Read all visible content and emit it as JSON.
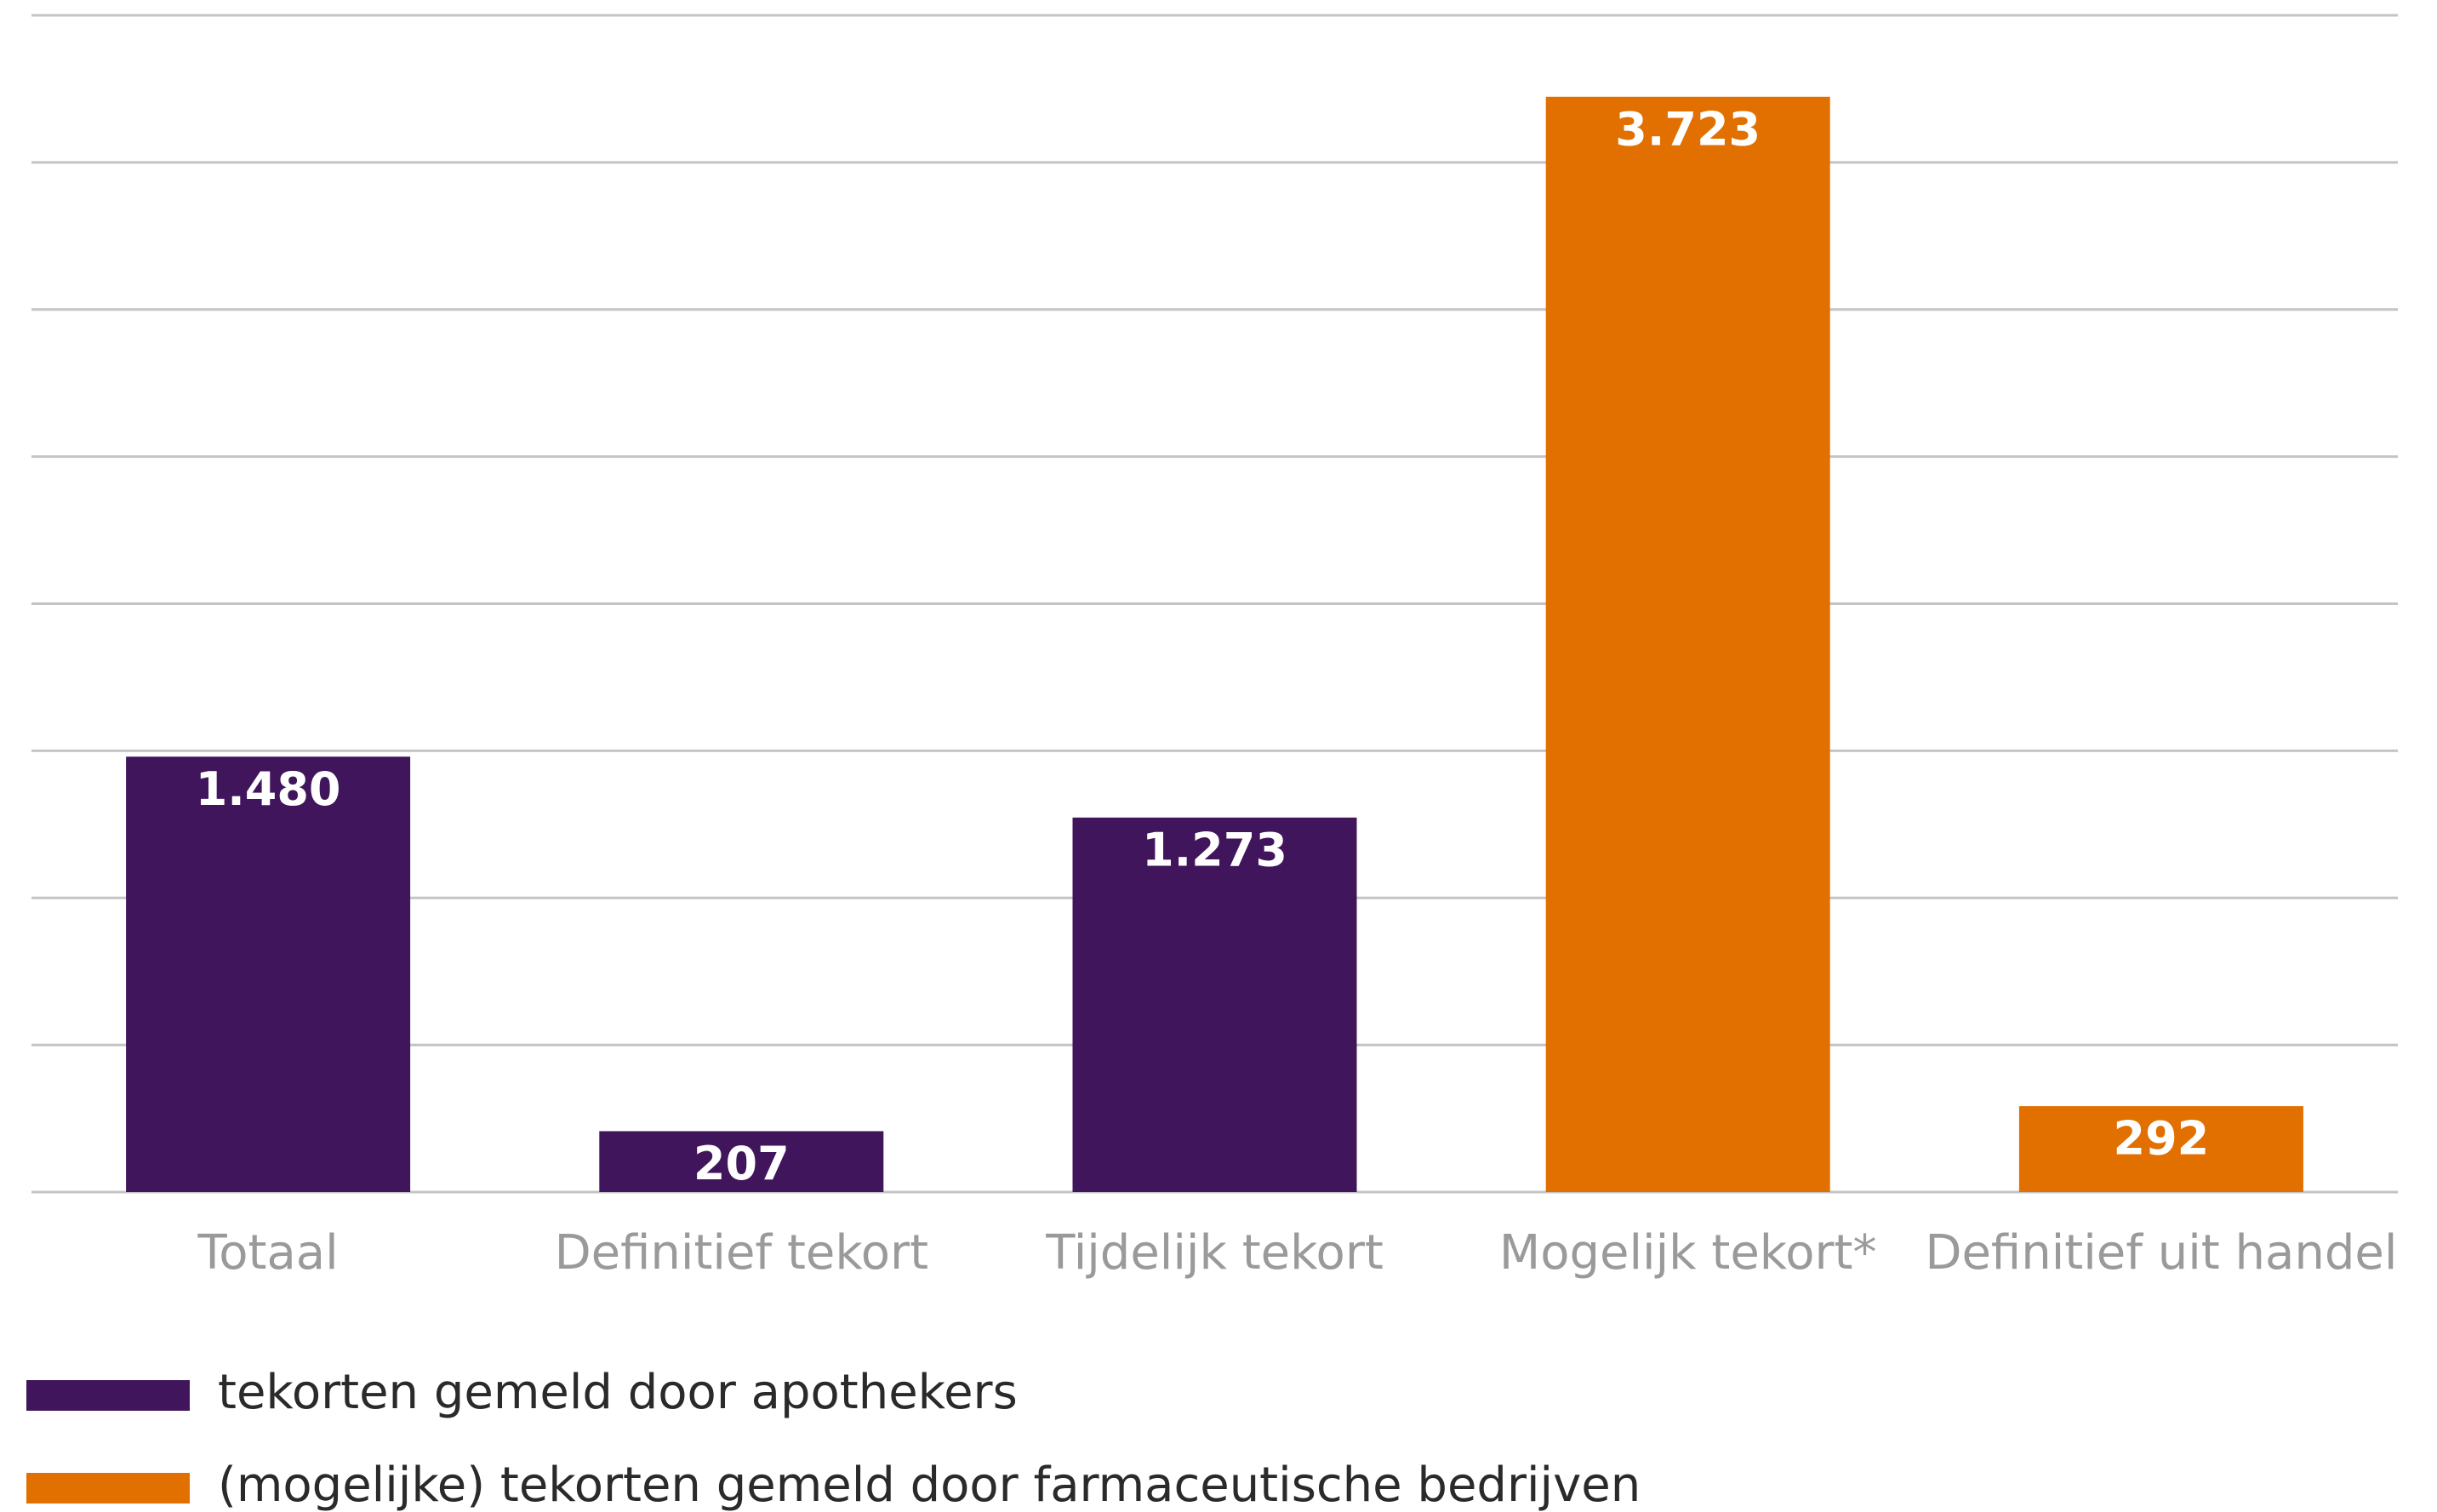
{
  "chart_data": {
    "type": "bar",
    "categories": [
      "Totaal",
      "Definitief tekort",
      "Tijdelijk tekort",
      "Mogelijk tekort*",
      "Definitief uit handel"
    ],
    "series": [
      {
        "name": "tekorten gemeld door apothekers",
        "color": "#40155c",
        "values": [
          1480,
          207,
          1273,
          null,
          null
        ],
        "value_labels": [
          "1.480",
          "207",
          "1.273",
          null,
          null
        ]
      },
      {
        "name": "(mogelijke) tekorten gemeld door farmaceutische bedrijven",
        "color": "#e17000",
        "values": [
          null,
          null,
          null,
          3723,
          292
        ],
        "value_labels": [
          null,
          null,
          null,
          "3.723",
          "292"
        ]
      }
    ],
    "ylim": [
      0,
      4000
    ],
    "yticks": [
      0,
      500,
      1000,
      1500,
      2000,
      2500,
      3000,
      3500,
      4000
    ],
    "grid": true
  }
}
